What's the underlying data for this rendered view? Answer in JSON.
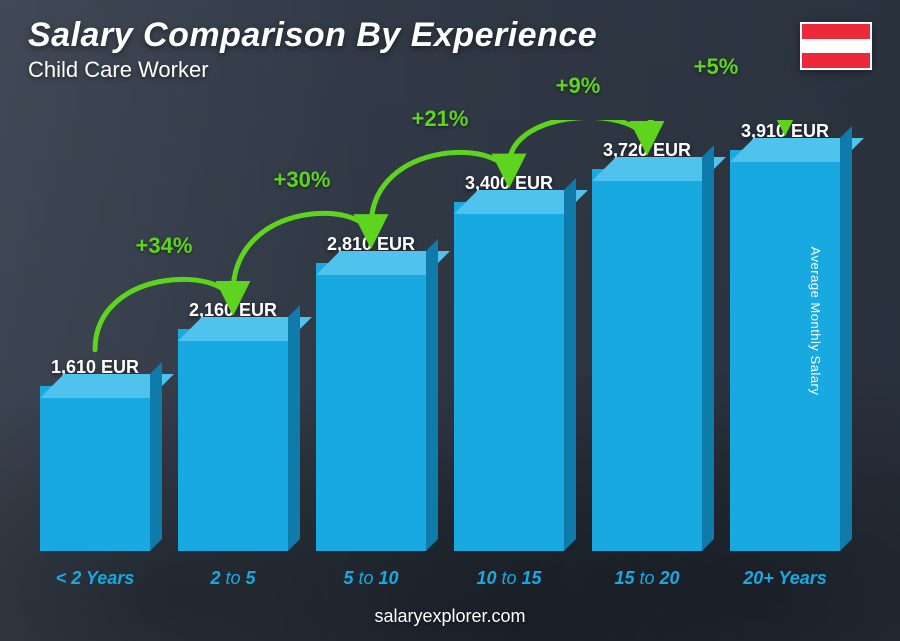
{
  "title": "Salary Comparison By Experience",
  "subtitle": "Child Care Worker",
  "y_axis_label": "Average Monthly Salary",
  "source": "salaryexplorer.com",
  "flag": {
    "top": "#ed2939",
    "mid": "#ffffff",
    "bot": "#ed2939"
  },
  "colors": {
    "bar_front": "#18a9e0",
    "bar_top": "#4fc3ee",
    "bar_side": "#0e7bab",
    "accent": "#5fd41f",
    "xlabel": "#18a9e0",
    "text": "#ffffff"
  },
  "chart": {
    "type": "bar",
    "max_value": 4200,
    "currency": "EUR",
    "bars": [
      {
        "label_pre": "< 2",
        "label_suf": "Years",
        "value": 1610
      },
      {
        "label_pre": "2",
        "label_mid": "to",
        "label_suf": "5",
        "value": 2160
      },
      {
        "label_pre": "5",
        "label_mid": "to",
        "label_suf": "10",
        "value": 2810
      },
      {
        "label_pre": "10",
        "label_mid": "to",
        "label_suf": "15",
        "value": 3400
      },
      {
        "label_pre": "15",
        "label_mid": "to",
        "label_suf": "20",
        "value": 3720
      },
      {
        "label_pre": "20+",
        "label_suf": "Years",
        "value": 3910
      }
    ],
    "deltas": [
      {
        "pct": "+34%"
      },
      {
        "pct": "+30%"
      },
      {
        "pct": "+21%"
      },
      {
        "pct": "+9%"
      },
      {
        "pct": "+5%"
      }
    ]
  }
}
